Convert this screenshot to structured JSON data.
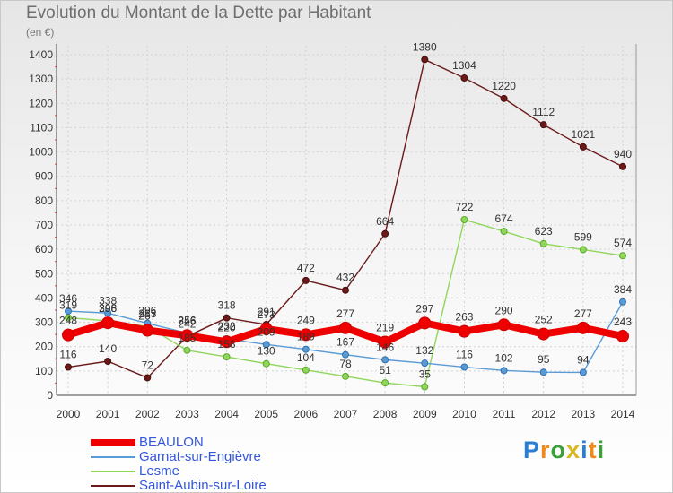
{
  "chart_data": {
    "type": "line",
    "title": "Evolution du Montant de la Dette par Habitant",
    "subtitle": "(en €)",
    "x": [
      "2000",
      "2001",
      "2002",
      "2003",
      "2004",
      "2005",
      "2006",
      "2007",
      "2008",
      "2009",
      "2010",
      "2011",
      "2012",
      "2013",
      "2014"
    ],
    "ylim": [
      0,
      1400
    ],
    "yticks": [
      0,
      100,
      200,
      300,
      400,
      500,
      600,
      700,
      800,
      900,
      1000,
      1100,
      1200,
      1300,
      1400
    ],
    "grid": true,
    "legend_position": "bottom-left",
    "series": [
      {
        "name": "BEAULON",
        "color": "#ee0000",
        "values": [
          248,
          298,
          267,
          246,
          220,
          273,
          249,
          277,
          219,
          297,
          263,
          290,
          252,
          277,
          243
        ]
      },
      {
        "name": "Garnat-sur-Engièvre",
        "color": "#5b9bd5",
        "values": [
          346,
          338,
          296,
          256,
          232,
          209,
          189,
          167,
          146,
          132,
          116,
          102,
          95,
          94,
          384
        ]
      },
      {
        "name": "Lesme",
        "color": "#8fd65a",
        "values": [
          319,
          306,
          283,
          185,
          158,
          130,
          104,
          78,
          51,
          35,
          722,
          674,
          623,
          599,
          574
        ]
      },
      {
        "name": "Saint-Aubin-sur-Loire",
        "color": "#6b1a1a",
        "values": [
          116,
          140,
          72,
          242,
          318,
          291,
          472,
          432,
          664,
          1380,
          1304,
          1220,
          1112,
          1021,
          940
        ]
      }
    ]
  },
  "branding": {
    "logo_text": "Proxiti"
  }
}
